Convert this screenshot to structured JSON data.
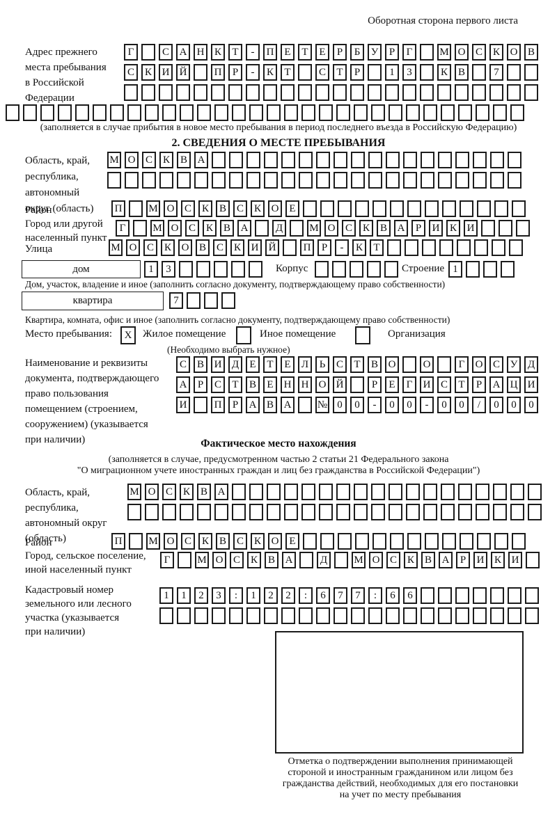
{
  "page": {
    "header_note": "Оборотная сторона первого листа"
  },
  "prev_address": {
    "label": "Адрес прежнего\nместа пребывания\nв Российской\nФедерации",
    "rows": [
      [
        "Г",
        "",
        "С",
        "А",
        "Н",
        "К",
        "Т",
        "-",
        "П",
        "Е",
        "Т",
        "Е",
        "Р",
        "Б",
        "У",
        "Р",
        "Г",
        "",
        "М",
        "О",
        "С",
        "К",
        "О",
        "В"
      ],
      [
        "С",
        "К",
        "И",
        "Й",
        "",
        "П",
        "Р",
        "-",
        "К",
        "Т",
        "",
        "С",
        "Т",
        "Р",
        "",
        "1",
        "3",
        "",
        "К",
        "В",
        "",
        "7",
        "",
        ""
      ],
      [
        "",
        "",
        "",
        "",
        "",
        "",
        "",
        "",
        "",
        "",
        "",
        "",
        "",
        "",
        "",
        "",
        "",
        "",
        "",
        "",
        "",
        "",
        "",
        ""
      ]
    ],
    "full_row": [
      "",
      "",
      "",
      "",
      "",
      "",
      "",
      "",
      "",
      "",
      "",
      "",
      "",
      "",
      "",
      "",
      "",
      "",
      "",
      "",
      "",
      "",
      "",
      "",
      "",
      "",
      "",
      "",
      "",
      ""
    ],
    "note": "(заполняется в случае прибытия в новое место пребывания в период последнего въезда в Российскую Федерацию)"
  },
  "section2": {
    "title": "2. СВЕДЕНИЯ О МЕСТЕ ПРЕБЫВАНИЯ",
    "region": {
      "label": "Область, край,\nреспублика,\nавтономный\nокруг (область)",
      "rows": [
        [
          "М",
          "О",
          "С",
          "К",
          "В",
          "А",
          "",
          "",
          "",
          "",
          "",
          "",
          "",
          "",
          "",
          "",
          "",
          "",
          "",
          "",
          "",
          "",
          "",
          ""
        ],
        [
          "",
          "",
          "",
          "",
          "",
          "",
          "",
          "",
          "",
          "",
          "",
          "",
          "",
          "",
          "",
          "",
          "",
          "",
          "",
          "",
          "",
          "",
          "",
          ""
        ]
      ]
    },
    "district": {
      "label": "Район",
      "row": [
        "П",
        "",
        "М",
        "О",
        "С",
        "К",
        "В",
        "С",
        "К",
        "О",
        "Е",
        "",
        "",
        "",
        "",
        "",
        "",
        "",
        "",
        "",
        "",
        "",
        "",
        ""
      ]
    },
    "city": {
      "label": "Город или другой\nнаселенный пункт",
      "row": [
        "Г",
        "",
        "М",
        "О",
        "С",
        "К",
        "В",
        "А",
        "",
        "Д",
        "",
        "М",
        "О",
        "С",
        "К",
        "В",
        "А",
        "Р",
        "И",
        "К",
        "И",
        "",
        "",
        ""
      ]
    },
    "street": {
      "label": "Улица",
      "row": [
        "М",
        "О",
        "С",
        "К",
        "О",
        "В",
        "С",
        "К",
        "И",
        "Й",
        "",
        "П",
        "Р",
        "-",
        "К",
        "Т",
        "",
        "",
        "",
        "",
        "",
        "",
        "",
        ""
      ]
    },
    "house": {
      "big_label": "дом",
      "boxes": [
        "1",
        "3",
        "",
        "",
        "",
        "",
        ""
      ],
      "korpus_label": "Корпус",
      "korpus_boxes": [
        "",
        "",
        "",
        "",
        ""
      ],
      "stroenie_label": "Строение",
      "stroenie_boxes": [
        "1",
        "",
        "",
        ""
      ],
      "note": "Дом, участок, владение и иное (заполнить согласно документу, подтверждающему право собственности)"
    },
    "apartment": {
      "big_label": "квартира",
      "boxes": [
        "7",
        "",
        "",
        ""
      ],
      "note": "Квартира, комната, офис и иное (заполнить согласно документу, подтверждающему право собственности)"
    },
    "stay_type": {
      "label": "Место пребывания:",
      "options": [
        {
          "label": "Жилое помещение",
          "mark": "X"
        },
        {
          "label": "Иное помещение",
          "mark": ""
        },
        {
          "label": "Организация",
          "mark": ""
        }
      ],
      "note": "(Необходимо выбрать нужное)"
    },
    "document": {
      "label": "Наименование и реквизиты\nдокумента, подтверждающего\nправо пользования\nпомещением (строением,\nсооружением) (указывается\nпри наличии)",
      "rows": [
        [
          "С",
          "В",
          "И",
          "Д",
          "Е",
          "Т",
          "Е",
          "Л",
          "Ь",
          "С",
          "Т",
          "В",
          "О",
          "",
          "О",
          "",
          "Г",
          "О",
          "С",
          "У",
          "Д"
        ],
        [
          "А",
          "Р",
          "С",
          "Т",
          "В",
          "Е",
          "Н",
          "Н",
          "О",
          "Й",
          "",
          "Р",
          "Е",
          "Г",
          "И",
          "С",
          "Т",
          "Р",
          "А",
          "Ц",
          "И"
        ],
        [
          "И",
          "",
          "П",
          "Р",
          "А",
          "В",
          "А",
          "",
          "№",
          "0",
          "0",
          "-",
          "0",
          "0",
          "-",
          "0",
          "0",
          "/",
          "0",
          "0",
          "0"
        ]
      ]
    }
  },
  "actual_location": {
    "title": "Фактическое место нахождения",
    "note_line1": "(заполняется в случае, предусмотренном частью 2 статьи 21 Федерального закона",
    "note_line2": "\"О миграционном учете иностранных граждан и лиц без гражданства в Российской Федерации\")",
    "region": {
      "label": "Область, край,\nреспублика,\nавтономный округ\n(область)",
      "rows": [
        [
          "М",
          "О",
          "С",
          "К",
          "В",
          "А",
          "",
          "",
          "",
          "",
          "",
          "",
          "",
          "",
          "",
          "",
          "",
          "",
          "",
          "",
          "",
          "",
          "",
          ""
        ],
        [
          "",
          "",
          "",
          "",
          "",
          "",
          "",
          "",
          "",
          "",
          "",
          "",
          "",
          "",
          "",
          "",
          "",
          "",
          "",
          "",
          "",
          "",
          "",
          ""
        ]
      ]
    },
    "district": {
      "label": "Район",
      "row": [
        "П",
        "",
        "М",
        "О",
        "С",
        "К",
        "В",
        "С",
        "К",
        "О",
        "Е",
        "",
        "",
        "",
        "",
        "",
        "",
        "",
        "",
        "",
        "",
        "",
        "",
        ""
      ]
    },
    "city": {
      "label": "Город, сельское поселение,\nиной населенный пункт",
      "row": [
        "Г",
        "",
        "М",
        "О",
        "С",
        "К",
        "В",
        "А",
        "",
        "Д",
        "",
        "М",
        "О",
        "С",
        "К",
        "В",
        "А",
        "Р",
        "И",
        "К",
        "И",
        ""
      ]
    },
    "cadastral": {
      "label": "Кадастровый номер\nземельного или лесного\nучастка (указывается\nпри наличии)",
      "rows": [
        [
          "1",
          "1",
          "2",
          "3",
          ":",
          "1",
          "2",
          "2",
          ":",
          "6",
          "7",
          "7",
          ":",
          "6",
          "6",
          "",
          "",
          "",
          "",
          "",
          "",
          ""
        ],
        [
          "",
          "",
          "",
          "",
          "",
          "",
          "",
          "",
          "",
          "",
          "",
          "",
          "",
          "",
          "",
          "",
          "",
          "",
          "",
          "",
          "",
          ""
        ]
      ]
    },
    "stamp_note": "Отметка о подтверждении выполнения принимающей\nстороной и иностранным гражданином или лицом без\nгражданства действий, необходимых для его постановки\nна учет по месту пребывания"
  }
}
